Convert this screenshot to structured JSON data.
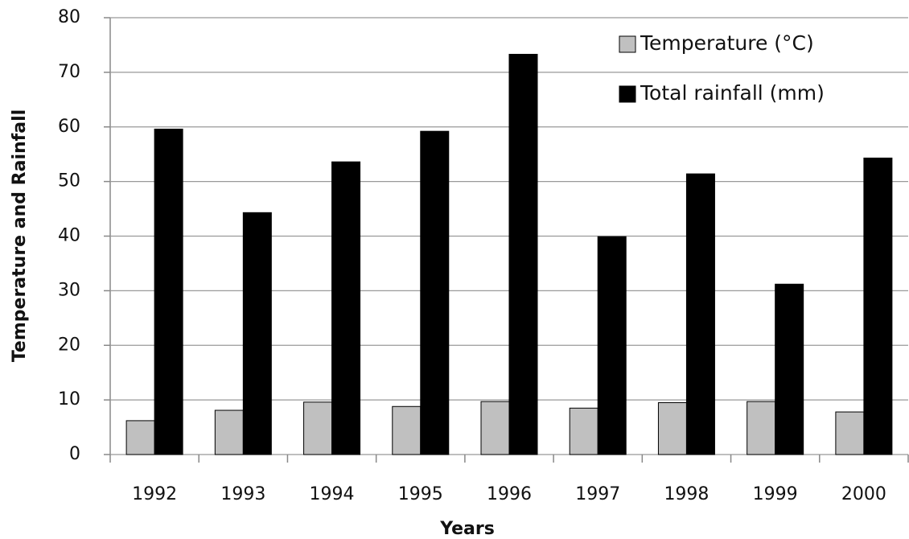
{
  "chart_data": {
    "type": "bar",
    "x_label": "Years",
    "y_label": "Temperature and Rainfall",
    "categories": [
      "1992",
      "1993",
      "1994",
      "1995",
      "1996",
      "1997",
      "1998",
      "1999",
      "2000"
    ],
    "series": [
      {
        "name": "Temperature (°C)",
        "color": "#c0c0c0",
        "values": [
          6.2,
          8.1,
          9.6,
          8.8,
          9.7,
          8.5,
          9.5,
          9.7,
          7.8
        ]
      },
      {
        "name": "Total rainfall (mm)",
        "color": "#000000",
        "values": [
          59.6,
          44.3,
          53.6,
          59.2,
          73.3,
          39.9,
          51.4,
          31.2,
          54.3
        ]
      }
    ],
    "ylim": [
      0,
      80
    ],
    "yticks": [
      0,
      10,
      20,
      30,
      40,
      50,
      60,
      70,
      80
    ],
    "grid": true,
    "legend": "upper right"
  }
}
